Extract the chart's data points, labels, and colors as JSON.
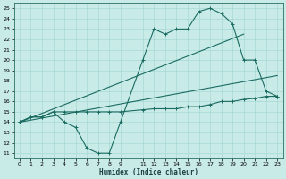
{
  "xlabel": "Humidex (Indice chaleur)",
  "bg_color": "#c8ebe8",
  "grid_color": "#a8d8d4",
  "line_color": "#1a6b60",
  "xlim": [
    -0.5,
    23.5
  ],
  "ylim": [
    10.5,
    25.5
  ],
  "xticks": [
    0,
    1,
    2,
    3,
    4,
    5,
    6,
    7,
    8,
    9,
    11,
    12,
    13,
    14,
    15,
    16,
    17,
    18,
    19,
    20,
    21,
    22,
    23
  ],
  "yticks": [
    11,
    12,
    13,
    14,
    15,
    16,
    17,
    18,
    19,
    20,
    21,
    22,
    23,
    24,
    25
  ],
  "line1_x": [
    0,
    1,
    2,
    3,
    4,
    5,
    6,
    7,
    8,
    9,
    11,
    12,
    13,
    14,
    15,
    16,
    17,
    18,
    19,
    20,
    21,
    22,
    23
  ],
  "line1_y": [
    14,
    14.5,
    14.5,
    15.0,
    14.0,
    13.5,
    11.5,
    11.0,
    11.0,
    14.0,
    20.0,
    23.0,
    22.5,
    23.0,
    23.0,
    24.7,
    25.0,
    24.5,
    23.5,
    20.0,
    20.0,
    17.0,
    16.5
  ],
  "line2_x": [
    0,
    1,
    2,
    3,
    4,
    5,
    6,
    7,
    8,
    9,
    11,
    12,
    13,
    14,
    15,
    16,
    17,
    18,
    19,
    20,
    21,
    22,
    23
  ],
  "line2_y": [
    14.0,
    14.5,
    14.5,
    15.0,
    15.0,
    15.0,
    15.0,
    15.0,
    15.0,
    15.0,
    15.2,
    15.3,
    15.3,
    15.3,
    15.5,
    15.5,
    15.7,
    16.0,
    16.0,
    16.2,
    16.3,
    16.5,
    16.5
  ],
  "line3_x": [
    0,
    20
  ],
  "line3_y": [
    14.0,
    22.5
  ],
  "line4_x": [
    0,
    23
  ],
  "line4_y": [
    14.0,
    18.5
  ]
}
